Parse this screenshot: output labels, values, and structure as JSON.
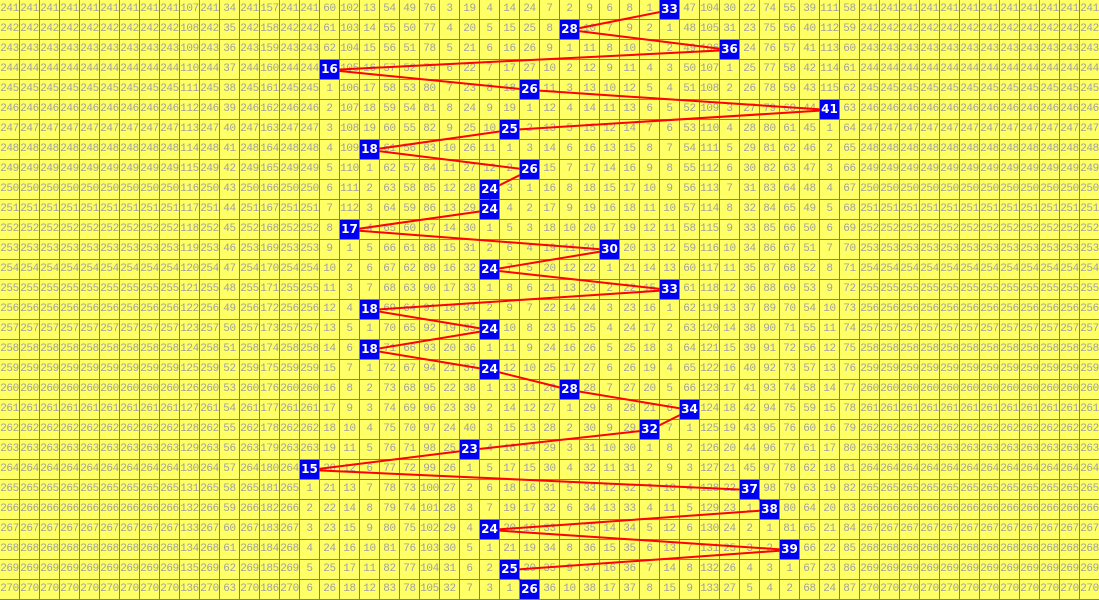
{
  "table": {
    "first_row_label": 241,
    "row_count": 30,
    "first_row_values": [
      241,
      241,
      241,
      241,
      241,
      241,
      241,
      241,
      241,
      107,
      241,
      34,
      241,
      157,
      241,
      241,
      60,
      102,
      13,
      54,
      49,
      76,
      3,
      19,
      4,
      14,
      24,
      7,
      2,
      9,
      6,
      8,
      1,
      33,
      47,
      104,
      30,
      22,
      74,
      55,
      39,
      111,
      58,
      241,
      241,
      241,
      241,
      241,
      241,
      241,
      241,
      241,
      241,
      241,
      241
    ],
    "hits": [
      33,
      28,
      36,
      16,
      26,
      41,
      25,
      18,
      26,
      24,
      24,
      17,
      30,
      24,
      33,
      18,
      24,
      18,
      24,
      28,
      34,
      32,
      23,
      15,
      37,
      38,
      24,
      39,
      25,
      26
    ]
  },
  "colors": {
    "cell_background": "#ffff66",
    "cell_text": "#a0a0a0",
    "grid_line": "#808080",
    "hit_background": "#0000f0",
    "hit_text": "#ffffff",
    "trend_line": "#ff0000"
  }
}
